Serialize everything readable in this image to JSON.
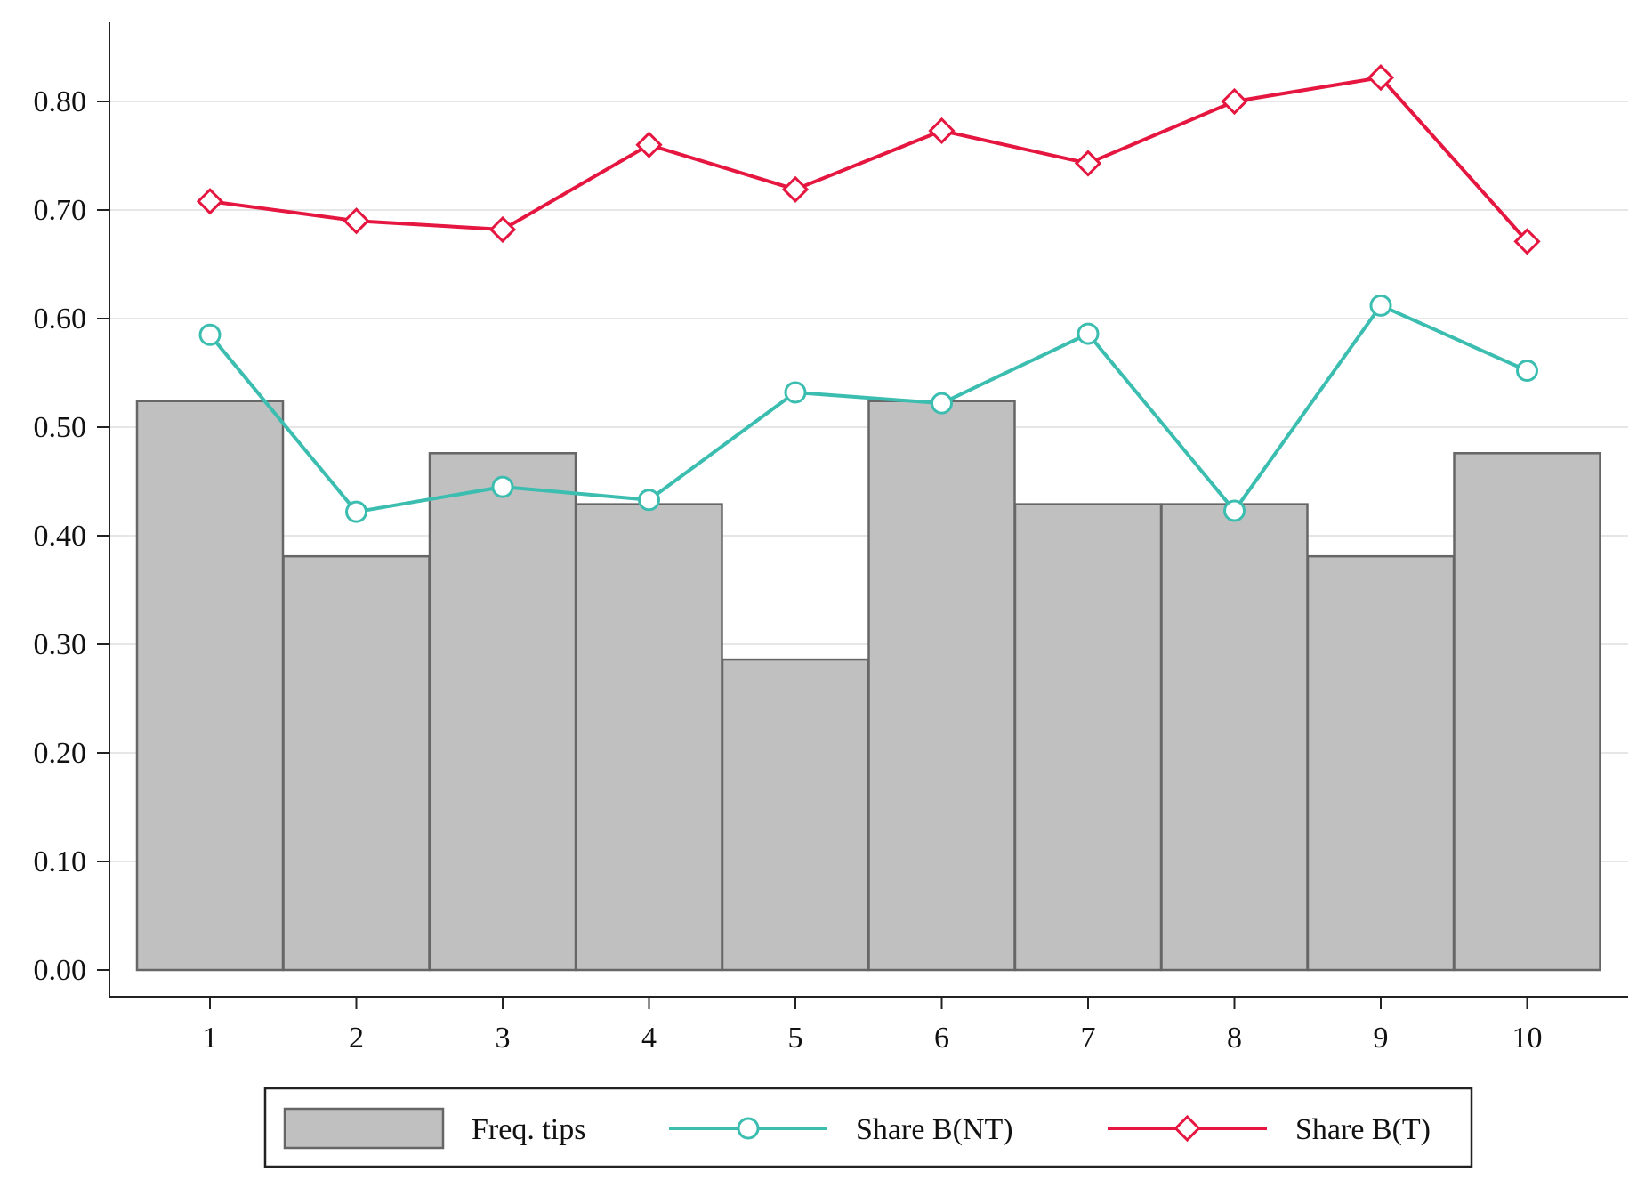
{
  "chart_data": {
    "type": "bar",
    "categories": [
      "1",
      "2",
      "3",
      "4",
      "5",
      "6",
      "7",
      "8",
      "9",
      "10"
    ],
    "series": [
      {
        "name": "Freq. tips",
        "type": "bar",
        "values": [
          0.524,
          0.381,
          0.476,
          0.429,
          0.286,
          0.524,
          0.429,
          0.429,
          0.381,
          0.476
        ],
        "color": "#c0c0c0"
      },
      {
        "name": "Share B(NT)",
        "type": "line",
        "marker": "circle",
        "values": [
          0.585,
          0.422,
          0.445,
          0.433,
          0.532,
          0.522,
          0.586,
          0.423,
          0.612,
          0.552
        ],
        "color": "#3bbdb0"
      },
      {
        "name": "Share B(T)",
        "type": "line",
        "marker": "diamond",
        "values": [
          0.708,
          0.69,
          0.682,
          0.76,
          0.719,
          0.773,
          0.743,
          0.8,
          0.822,
          0.671
        ],
        "color": "#e5163f"
      }
    ],
    "yticks": [
      "0.00",
      "0.10",
      "0.20",
      "0.30",
      "0.40",
      "0.50",
      "0.60",
      "0.70",
      "0.80"
    ],
    "ylim": [
      0,
      0.88
    ],
    "title": "",
    "xlabel": "",
    "ylabel": "",
    "grid": true,
    "legend_position": "bottom"
  }
}
